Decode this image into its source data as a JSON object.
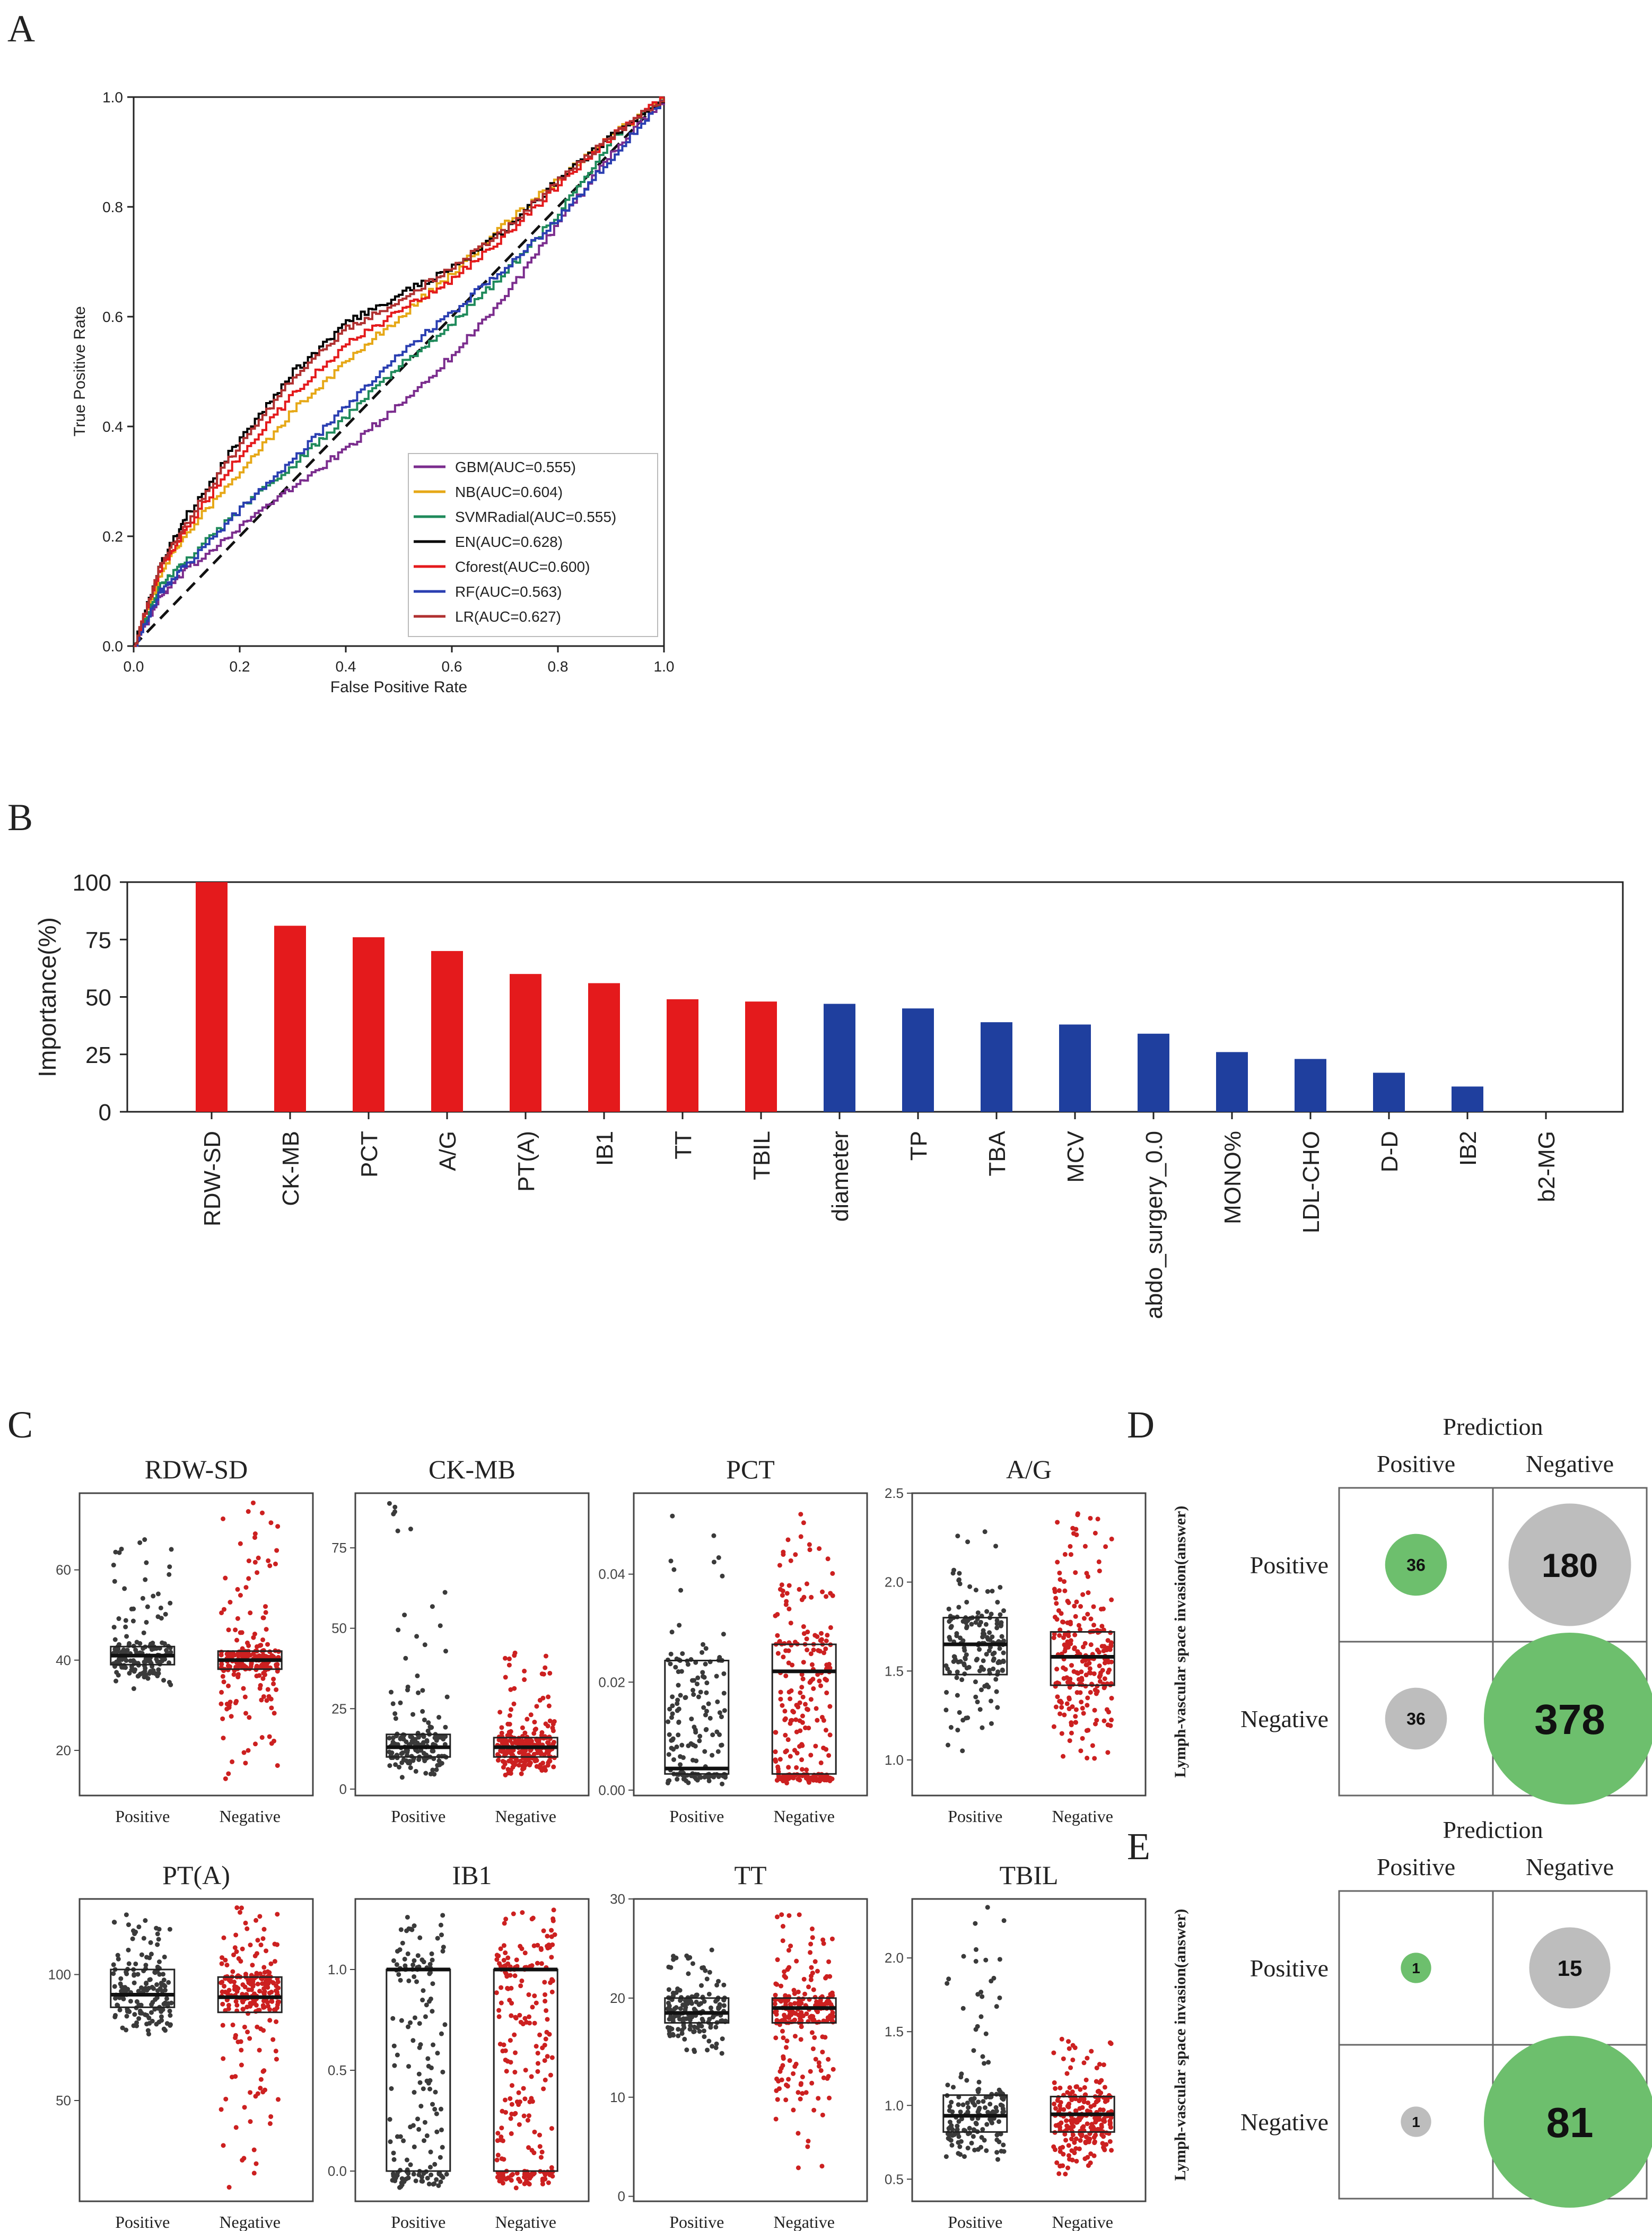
{
  "panels": {
    "a": "A",
    "b": "B",
    "c": "C",
    "d": "D",
    "e": "E"
  },
  "colors": {
    "GBM": "#7b2d8e",
    "NB": "#e6a817",
    "SVMRadial": "#1f8a5b",
    "EN": "#000000",
    "Cforest": "#e41a1c",
    "RF": "#2a3eb1",
    "LR": "#b03030",
    "red_bar": "#e41a1c",
    "blue_bar": "#1f3f9e",
    "dot_pos": "#3a3a3a",
    "dot_neg": "#cc2020",
    "circle_green": "#6dbf6d",
    "circle_grey": "#bdbdbd"
  },
  "chart_data": [
    {
      "id": "roc",
      "type": "line",
      "title": "",
      "xlabel": "False Positive Rate",
      "ylabel": "True Positive Rate",
      "xlim": [
        0,
        1
      ],
      "ylim": [
        0,
        1
      ],
      "ticks": [
        "0.0",
        "0.2",
        "0.4",
        "0.6",
        "0.8",
        "1.0"
      ],
      "legend_position": "bottom-right",
      "series": [
        {
          "key": "GBM",
          "name": "GBM(AUC=0.555)",
          "x": [
            0,
            0.05,
            0.1,
            0.2,
            0.3,
            0.4,
            0.5,
            0.6,
            0.7,
            0.8,
            0.9,
            1
          ],
          "y": [
            0,
            0.09,
            0.14,
            0.22,
            0.29,
            0.36,
            0.44,
            0.53,
            0.64,
            0.77,
            0.9,
            1
          ]
        },
        {
          "key": "NB",
          "name": "NB(AUC=0.604)",
          "x": [
            0,
            0.05,
            0.1,
            0.2,
            0.3,
            0.4,
            0.5,
            0.6,
            0.7,
            0.8,
            0.9,
            1
          ],
          "y": [
            0,
            0.13,
            0.21,
            0.32,
            0.43,
            0.52,
            0.6,
            0.68,
            0.77,
            0.85,
            0.93,
            1
          ]
        },
        {
          "key": "SVMRadial",
          "name": "SVMRadial(AUC=0.555)",
          "x": [
            0,
            0.05,
            0.1,
            0.2,
            0.3,
            0.4,
            0.5,
            0.6,
            0.7,
            0.8,
            0.9,
            1
          ],
          "y": [
            0,
            0.11,
            0.16,
            0.25,
            0.33,
            0.42,
            0.51,
            0.59,
            0.68,
            0.79,
            0.92,
            1
          ]
        },
        {
          "key": "EN",
          "name": "EN(AUC=0.628)",
          "x": [
            0,
            0.05,
            0.1,
            0.2,
            0.3,
            0.4,
            0.5,
            0.6,
            0.7,
            0.8,
            0.9,
            1
          ],
          "y": [
            0,
            0.15,
            0.24,
            0.38,
            0.5,
            0.59,
            0.64,
            0.69,
            0.76,
            0.85,
            0.93,
            1
          ]
        },
        {
          "key": "Cforest",
          "name": "Cforest(AUC=0.600)",
          "x": [
            0,
            0.05,
            0.1,
            0.2,
            0.3,
            0.4,
            0.5,
            0.6,
            0.7,
            0.8,
            0.9,
            1
          ],
          "y": [
            0,
            0.14,
            0.22,
            0.35,
            0.46,
            0.55,
            0.61,
            0.67,
            0.75,
            0.84,
            0.93,
            1
          ]
        },
        {
          "key": "RF",
          "name": "RF(AUC=0.563)",
          "x": [
            0,
            0.05,
            0.1,
            0.2,
            0.3,
            0.4,
            0.5,
            0.6,
            0.7,
            0.8,
            0.9,
            1
          ],
          "y": [
            0,
            0.1,
            0.15,
            0.25,
            0.34,
            0.44,
            0.53,
            0.61,
            0.69,
            0.78,
            0.89,
            1
          ]
        },
        {
          "key": "LR",
          "name": "LR(AUC=0.627)",
          "x": [
            0,
            0.05,
            0.1,
            0.2,
            0.3,
            0.4,
            0.5,
            0.6,
            0.7,
            0.8,
            0.9,
            1
          ],
          "y": [
            0,
            0.15,
            0.23,
            0.37,
            0.49,
            0.58,
            0.63,
            0.69,
            0.76,
            0.85,
            0.93,
            1
          ]
        }
      ]
    },
    {
      "id": "importance",
      "type": "bar",
      "ylabel": "Importance(%)",
      "ylim": [
        0,
        100
      ],
      "yticks": [
        "0",
        "25",
        "50",
        "75",
        "100"
      ],
      "categories": [
        "RDW-SD",
        "CK-MB",
        "PCT",
        "A/G",
        "PT(A)",
        "IB1",
        "TT",
        "TBIL",
        "diameter",
        "TP",
        "TBA",
        "MCV",
        "abdo_surgery_0.0",
        "MONO%",
        "LDL-CHO",
        "D-D",
        "IB2",
        "b2-MG"
      ],
      "values": [
        100,
        81,
        76,
        70,
        60,
        56,
        49,
        48,
        47,
        45,
        39,
        38,
        34,
        26,
        23,
        17,
        11,
        0
      ],
      "groups": [
        "red",
        "red",
        "red",
        "red",
        "red",
        "red",
        "red",
        "red",
        "blue",
        "blue",
        "blue",
        "blue",
        "blue",
        "blue",
        "blue",
        "blue",
        "blue",
        "blue"
      ]
    },
    {
      "id": "boxplots",
      "type": "box",
      "group_labels": [
        "Positive",
        "Negative"
      ],
      "plots": [
        {
          "title": "RDW-SD",
          "ylim": [
            10,
            77
          ],
          "yticks": [
            "20",
            "40",
            "60"
          ],
          "pos": {
            "min": 33,
            "q1": 39,
            "med": 41,
            "q3": 43,
            "max": 70
          },
          "neg": {
            "min": 13,
            "q1": 38,
            "med": 40,
            "q3": 42,
            "max": 75
          }
        },
        {
          "title": "CK-MB",
          "ylim": [
            -2,
            92
          ],
          "yticks": [
            "0",
            "25",
            "50",
            "75"
          ],
          "pos": {
            "min": 3,
            "q1": 10,
            "med": 13,
            "q3": 17,
            "max": 90
          },
          "neg": {
            "min": 4,
            "q1": 10,
            "med": 13,
            "q3": 16,
            "max": 44
          }
        },
        {
          "title": "PCT",
          "ylim": [
            -0.001,
            0.055
          ],
          "yticks": [
            "0.00",
            "0.02",
            "0.04"
          ],
          "pos": {
            "min": 0.001,
            "q1": 0.003,
            "med": 0.004,
            "q3": 0.024,
            "max": 0.053
          },
          "neg": {
            "min": 0.001,
            "q1": 0.003,
            "med": 0.022,
            "q3": 0.027,
            "max": 0.052
          }
        },
        {
          "title": "A/G",
          "ylim": [
            0.8,
            2.5
          ],
          "yticks": [
            "1.0",
            "1.5",
            "2.0",
            "2.5"
          ],
          "pos": {
            "min": 0.88,
            "q1": 1.48,
            "med": 1.65,
            "q3": 1.8,
            "max": 2.3
          },
          "neg": {
            "min": 0.98,
            "q1": 1.42,
            "med": 1.58,
            "q3": 1.72,
            "max": 2.45
          }
        },
        {
          "title": "PT(A)",
          "ylim": [
            10,
            130
          ],
          "yticks": [
            "50",
            "100"
          ],
          "pos": {
            "min": 75,
            "q1": 87,
            "med": 92,
            "q3": 102,
            "max": 125
          },
          "neg": {
            "min": 12,
            "q1": 85,
            "med": 91,
            "q3": 99,
            "max": 128
          }
        },
        {
          "title": "IB1",
          "ylim": [
            -0.15,
            1.35
          ],
          "yticks": [
            "0.0",
            "0.5",
            "1.0"
          ],
          "pos": {
            "min": -0.1,
            "q1": 0.0,
            "med": 1.0,
            "q3": 1.0,
            "max": 1.3
          },
          "neg": {
            "min": -0.1,
            "q1": 0.0,
            "med": 1.0,
            "q3": 1.0,
            "max": 1.3
          }
        },
        {
          "title": "TT",
          "ylim": [
            -0.5,
            30
          ],
          "yticks": [
            "0",
            "10",
            "20",
            "30"
          ],
          "pos": {
            "min": 14,
            "q1": 17.5,
            "med": 18.5,
            "q3": 20,
            "max": 25
          },
          "neg": {
            "min": 0,
            "q1": 17.5,
            "med": 19,
            "q3": 20,
            "max": 29
          }
        },
        {
          "title": "TBIL",
          "ylim": [
            0.35,
            2.4
          ],
          "yticks": [
            "0.5",
            "1.0",
            "1.5",
            "2.0"
          ],
          "pos": {
            "min": 0.6,
            "q1": 0.82,
            "med": 0.93,
            "q3": 1.07,
            "max": 2.35
          },
          "neg": {
            "min": 0.5,
            "q1": 0.82,
            "med": 0.94,
            "q3": 1.06,
            "max": 1.45
          }
        }
      ]
    },
    {
      "id": "confusion_d",
      "type": "table",
      "title": "Prediction",
      "row_axis": "Lymph-vascular space invasion(answer)",
      "col_labels": [
        "Positive",
        "Negative"
      ],
      "row_labels": [
        "Positive",
        "Negative"
      ],
      "cells": [
        [
          36,
          180
        ],
        [
          36,
          378
        ]
      ],
      "cell_colors": [
        [
          "green",
          "grey"
        ],
        [
          "grey",
          "green"
        ]
      ],
      "cell_text": [
        [
          "36",
          "180"
        ],
        [
          "36",
          "378"
        ]
      ]
    },
    {
      "id": "confusion_e",
      "type": "table",
      "title": "Prediction",
      "row_axis": "Lymph-vascular space invasion(answer)",
      "col_labels": [
        "Positive",
        "Negative"
      ],
      "row_labels": [
        "Positive",
        "Negative"
      ],
      "cells": [
        [
          1,
          15
        ],
        [
          1,
          81
        ]
      ],
      "cell_colors": [
        [
          "green",
          "grey"
        ],
        [
          "grey",
          "green"
        ]
      ],
      "cell_text": [
        [
          "1",
          "15"
        ],
        [
          "1",
          "81"
        ]
      ]
    }
  ]
}
